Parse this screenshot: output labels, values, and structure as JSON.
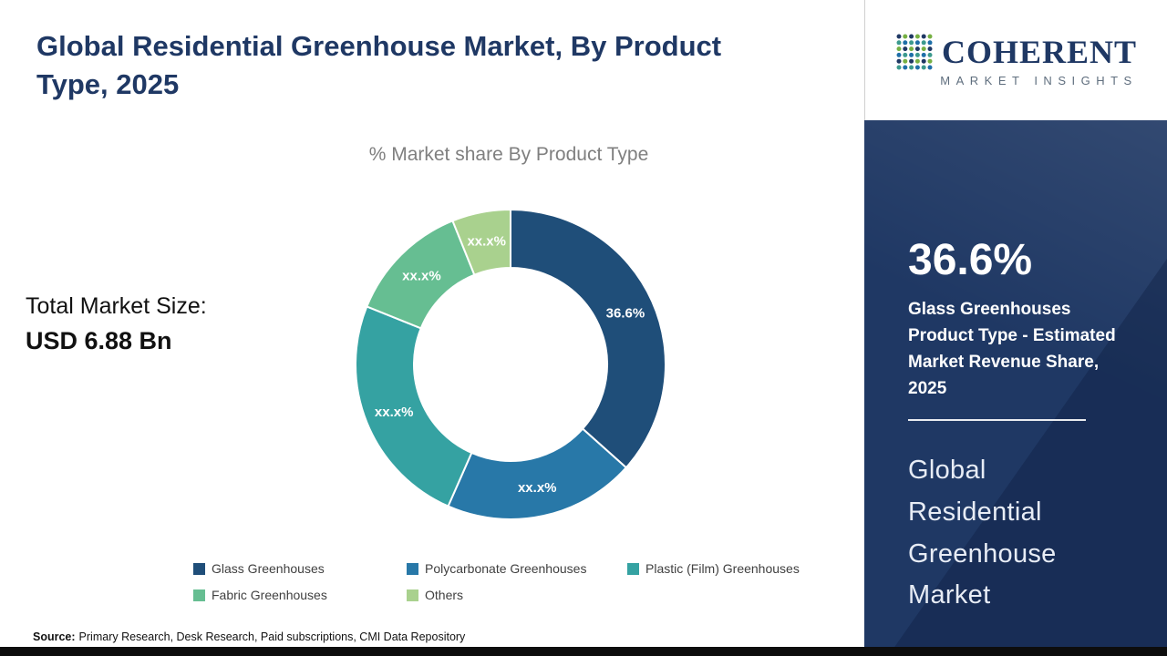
{
  "theme": {
    "navy": "#1F3864",
    "panel": "#1F3864",
    "bar": "#0d0d0d"
  },
  "page": {
    "title": "Global Residential Greenhouse Market, By Product Type, 2025"
  },
  "chart_data": {
    "type": "pie",
    "donut": true,
    "title": "% Market share By Product Type",
    "categories": [
      "Glass Greenhouses",
      "Polycarbonate Greenhouses",
      "Plastic (Film) Greenhouses",
      "Fabric Greenhouses",
      "Others"
    ],
    "values": [
      36.6,
      20.0,
      24.5,
      12.8,
      6.1
    ],
    "display_labels": [
      "36.6%",
      "xx.x%",
      "xx.x%",
      "xx.x%",
      "xx.x%"
    ],
    "colors": [
      "#1F4E79",
      "#2878A8",
      "#35A2A2",
      "#66BE92",
      "#A9D18E"
    ],
    "legend_position": "bottom",
    "start_angle_deg": -90
  },
  "market_size": {
    "label": "Total Market Size:",
    "value": "USD 6.88 Bn"
  },
  "source": {
    "label": "Source:",
    "text": "Primary Research, Desk Research, Paid subscriptions, CMI Data Repository"
  },
  "sidebar": {
    "logo": {
      "name": "COHERENT",
      "tagline": "MARKET INSIGHTS",
      "mark_colors": [
        "#1F3864",
        "#3C9A8E",
        "#76B043",
        "#1F6FA8"
      ]
    },
    "stat_value": "36.6%",
    "stat_caption": "Glass Greenhouses Product Type - Estimated Market Revenue Share, 2025",
    "market_title": "Global Residential Greenhouse Market"
  }
}
